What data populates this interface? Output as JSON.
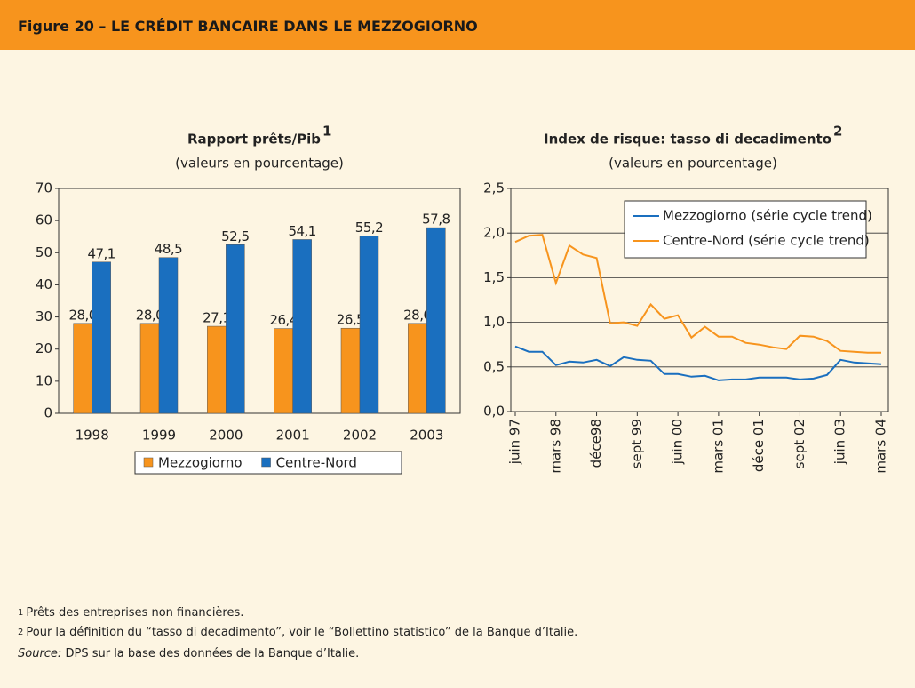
{
  "header": {
    "title": "Figure 20 – LE CRÉDIT BANCAIRE DANS LE MEZZOGIORNO"
  },
  "chart_data": [
    {
      "type": "bar",
      "title": "Rapport prêts/Pib",
      "title_note": "1",
      "subtitle": "(valeurs en pourcentage)",
      "categories": [
        "1998",
        "1999",
        "2000",
        "2001",
        "2002",
        "2003"
      ],
      "series": [
        {
          "name": "Mezzogiorno",
          "color": "#f7941d",
          "values": [
            28.0,
            28.0,
            27.1,
            26.4,
            26.5,
            28.0
          ],
          "value_labels": [
            "28,0",
            "28,0",
            "27,1",
            "26,4",
            "26,5",
            "28,0"
          ]
        },
        {
          "name": "Centre-Nord",
          "color": "#1a6fbf",
          "values": [
            47.1,
            48.5,
            52.5,
            54.1,
            55.2,
            57.8
          ],
          "value_labels": [
            "47,1",
            "48,5",
            "52,5",
            "54,1",
            "55,2",
            "57,8"
          ]
        }
      ],
      "ylim": [
        0,
        70
      ],
      "yticks": [
        0,
        10,
        20,
        30,
        40,
        50,
        60,
        70
      ],
      "grid": false,
      "legend": "bottom"
    },
    {
      "type": "line",
      "title": "Index de risque: tasso di decadimento",
      "title_note": "2",
      "subtitle": "(valeurs en pourcentage)",
      "categories": [
        "juin 97",
        null,
        null,
        "mars 98",
        null,
        null,
        "déce98",
        null,
        null,
        "sept 99",
        null,
        null,
        "juin 00",
        null,
        null,
        "mars 01",
        null,
        null,
        "déce 01",
        null,
        null,
        "sept 02",
        null,
        null,
        "juin 03",
        null,
        null,
        "mars 04"
      ],
      "series": [
        {
          "name": "Mezzogiorno (série cycle trend)",
          "color": "#1a6fbf",
          "values": [
            0.73,
            0.67,
            0.67,
            0.52,
            0.56,
            0.55,
            0.58,
            0.51,
            0.61,
            0.58,
            0.57,
            0.42,
            0.42,
            0.39,
            0.4,
            0.35,
            0.36,
            0.36,
            0.38,
            0.38,
            0.38,
            0.36,
            0.37,
            0.41,
            0.58,
            0.55,
            0.54,
            0.53
          ]
        },
        {
          "name": "Centre-Nord (série cycle trend)",
          "color": "#f7941d",
          "values": [
            1.9,
            1.97,
            1.98,
            1.44,
            1.86,
            1.76,
            1.72,
            0.99,
            1.0,
            0.96,
            1.2,
            1.04,
            1.08,
            0.83,
            0.95,
            0.84,
            0.84,
            0.77,
            0.75,
            0.72,
            0.7,
            0.85,
            0.84,
            0.79,
            0.68,
            0.67,
            0.66,
            0.66
          ]
        }
      ],
      "ylim": [
        0,
        2.5
      ],
      "yticks": [
        {
          "value": 0,
          "label": "0,0"
        },
        {
          "value": 0.5,
          "label": "0,5"
        },
        {
          "value": 1,
          "label": "1,0"
        },
        {
          "value": 1.5,
          "label": "1,5"
        },
        {
          "value": 2,
          "label": "2,0"
        },
        {
          "value": 2.5,
          "label": "2,5"
        }
      ],
      "grid": true,
      "legend": "top-right"
    }
  ],
  "footnotes": [
    {
      "marker": "1",
      "text": "Prêts des entreprises non financières."
    },
    {
      "marker": "2",
      "text": "Pour la définition du “tasso di decadimento”, voir le “Bollettino statistico” de la Banque d’Italie."
    }
  ],
  "source": {
    "label": "Source:",
    "text": "DPS sur la base des données de la Banque d’Italie."
  }
}
